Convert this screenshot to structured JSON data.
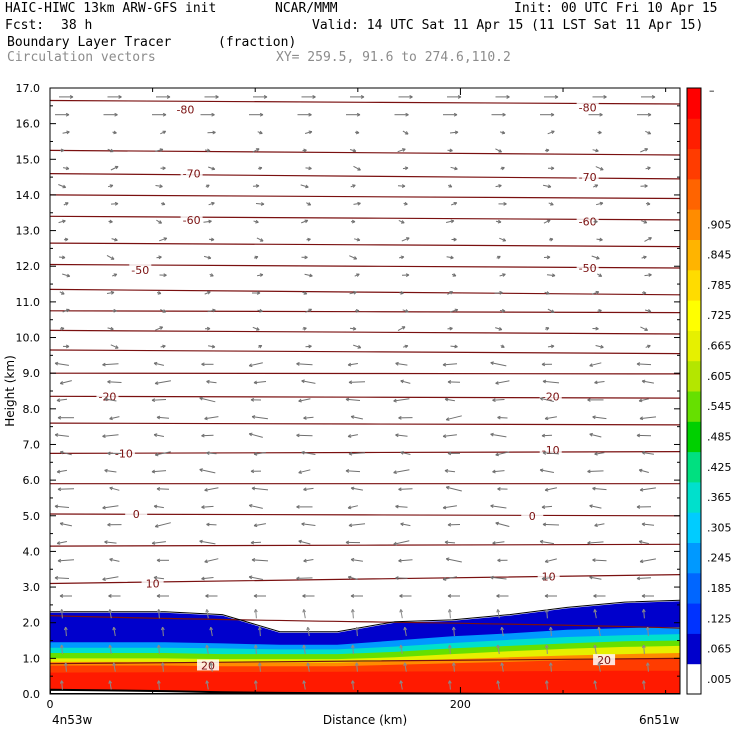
{
  "header": {
    "model": "HAIC-HIWC 13km ARW-GFS init",
    "org": "NCAR/MMM",
    "init": "Init: 00 UTC Fri 10 Apr 15",
    "fcst_label": "Fcst:",
    "fcst_value": "38 h",
    "valid": "Valid: 14 UTC Sat 11 Apr 15 (11 LST Sat 11 Apr 15)",
    "field": "Boundary Layer Tracer",
    "field_units": "(fraction)",
    "vectors": "Circulation vectors",
    "xy": "XY= 259.5, 91.6 to 274.6,110.2"
  },
  "chart_data": {
    "type": "heatmap",
    "ylabel": "Height (km)",
    "xlabel": "Distance (km)",
    "ylim": [
      0,
      17
    ],
    "xlim": [
      0,
      307
    ],
    "y_ticks": [
      "0.0",
      "1.0",
      "2.0",
      "3.0",
      "4.0",
      "5.0",
      "6.0",
      "7.0",
      "8.0",
      "9.0",
      "10.0",
      "11.0",
      "12.0",
      "13.0",
      "14.0",
      "15.0",
      "16.0",
      "17.0"
    ],
    "x_ticks": [
      {
        "value": 0,
        "label": "0"
      },
      {
        "value": 200,
        "label": "200"
      }
    ],
    "x_endpoints": {
      "left": "4n53w",
      "right": "6n51w"
    },
    "grid": false,
    "colorbar": {
      "labels": [
        ".005",
        ".065",
        ".125",
        ".185",
        ".245",
        ".305",
        ".365",
        ".425",
        ".485",
        ".545",
        ".605",
        ".665",
        ".725",
        ".785",
        ".845",
        ".905"
      ],
      "top_label": "–",
      "colors": [
        "#ffffff",
        "#0000cc",
        "#0033ff",
        "#0066ff",
        "#0099ff",
        "#00ccff",
        "#00e0cc",
        "#00e080",
        "#00d000",
        "#66e000",
        "#b4e600",
        "#e6f000",
        "#ffff00",
        "#ffdc00",
        "#ffb400",
        "#ff8c00",
        "#ff6400",
        "#ff3c00",
        "#ff1e00",
        "#ff0000"
      ]
    },
    "tracer_layers": [
      {
        "fraction": 0.005,
        "top_km": [
          2.28,
          2.28,
          2.28,
          2.2,
          1.72,
          1.72,
          2.0,
          2.05,
          2.2,
          2.4,
          2.55,
          2.6
        ]
      },
      {
        "fraction": 0.185,
        "top_km": [
          1.45,
          1.45,
          1.45,
          1.42,
          1.38,
          1.38,
          1.5,
          1.62,
          1.7,
          1.8,
          1.85,
          1.88
        ]
      },
      {
        "fraction": 0.305,
        "top_km": [
          1.3,
          1.3,
          1.3,
          1.28,
          1.25,
          1.25,
          1.33,
          1.43,
          1.52,
          1.6,
          1.65,
          1.68
        ]
      },
      {
        "fraction": 0.425,
        "top_km": [
          1.15,
          1.15,
          1.15,
          1.12,
          1.12,
          1.12,
          1.18,
          1.28,
          1.35,
          1.42,
          1.48,
          1.5
        ]
      },
      {
        "fraction": 0.545,
        "top_km": [
          1.0,
          1.0,
          1.0,
          0.98,
          0.98,
          0.98,
          1.03,
          1.12,
          1.2,
          1.27,
          1.32,
          1.35
        ]
      },
      {
        "fraction": 0.725,
        "top_km": [
          0.9,
          0.9,
          0.9,
          0.88,
          0.88,
          0.88,
          0.92,
          0.98,
          1.03,
          1.08,
          1.12,
          1.15
        ]
      },
      {
        "fraction": 0.845,
        "top_km": [
          0.8,
          0.8,
          0.8,
          0.78,
          0.78,
          0.78,
          0.82,
          0.86,
          0.9,
          0.95,
          0.98,
          1.0
        ]
      }
    ],
    "tracer_x_km": [
      0,
      28,
      56,
      84,
      112,
      140,
      168,
      196,
      224,
      252,
      280,
      307
    ],
    "terrain_km": [
      0.12,
      0.1,
      0.08,
      0.05,
      0.03,
      0.02,
      0.02,
      0.01,
      0.0,
      0.0,
      0.0,
      0.0
    ],
    "isotherms": [
      {
        "label": "-80",
        "left_km": 16.65,
        "right_km": 16.55,
        "label_pos": [
          {
            "x": 66,
            "y": 16.4
          },
          {
            "x": 262,
            "y": 16.45
          }
        ]
      },
      {
        "label": "",
        "left_km": 15.25,
        "right_km": 15.12
      },
      {
        "label": "-70",
        "left_km": 14.6,
        "right_km": 14.45,
        "label_pos": [
          {
            "x": 69,
            "y": 14.6
          },
          {
            "x": 262,
            "y": 14.5
          }
        ]
      },
      {
        "label": "",
        "left_km": 14.0,
        "right_km": 13.9
      },
      {
        "label": "-60",
        "left_km": 13.4,
        "right_km": 13.3,
        "label_pos": [
          {
            "x": 69,
            "y": 13.3
          },
          {
            "x": 262,
            "y": 13.25
          }
        ]
      },
      {
        "label": "",
        "left_km": 12.65,
        "right_km": 12.55
      },
      {
        "label": "-50",
        "left_km": 12.05,
        "right_km": 11.95,
        "label_pos": [
          {
            "x": 44,
            "y": 11.9
          },
          {
            "x": 262,
            "y": 11.95
          }
        ]
      },
      {
        "label": "",
        "left_km": 11.35,
        "right_km": 11.2
      },
      {
        "label": "",
        "left_km": 10.75,
        "right_km": 10.7
      },
      {
        "label": "",
        "left_km": 10.2,
        "right_km": 10.1
      },
      {
        "label": "",
        "left_km": 9.65,
        "right_km": 9.55
      },
      {
        "label": "",
        "left_km": 9.0,
        "right_km": 8.98
      },
      {
        "label": "-20",
        "left_km": 8.35,
        "right_km": 8.3,
        "label_pos": [
          {
            "x": 28,
            "y": 8.35
          },
          {
            "x": 244,
            "y": 8.35
          }
        ]
      },
      {
        "label": "",
        "left_km": 7.6,
        "right_km": 7.55
      },
      {
        "label": "-10",
        "left_km": 6.75,
        "right_km": 6.8,
        "label_pos": [
          {
            "x": 36,
            "y": 6.75
          },
          {
            "x": 244,
            "y": 6.85
          }
        ]
      },
      {
        "label": "",
        "left_km": 5.9,
        "right_km": 5.9
      },
      {
        "label": "0",
        "left_km": 5.05,
        "right_km": 5.0,
        "label_pos": [
          {
            "x": 42,
            "y": 5.05
          },
          {
            "x": 235,
            "y": 5.0
          }
        ]
      },
      {
        "label": "",
        "left_km": 4.15,
        "right_km": 4.2
      },
      {
        "label": "10",
        "left_km": 3.1,
        "right_km": 3.35,
        "label_pos": [
          {
            "x": 50,
            "y": 3.1
          },
          {
            "x": 243,
            "y": 3.3
          }
        ]
      },
      {
        "label": "",
        "left_km": 2.2,
        "right_km": 1.85
      },
      {
        "label": "20",
        "left_km": 0.85,
        "right_km": 1.0,
        "label_pos": [
          {
            "x": 77,
            "y": 0.8
          },
          {
            "x": 270,
            "y": 0.95
          }
        ]
      }
    ]
  }
}
